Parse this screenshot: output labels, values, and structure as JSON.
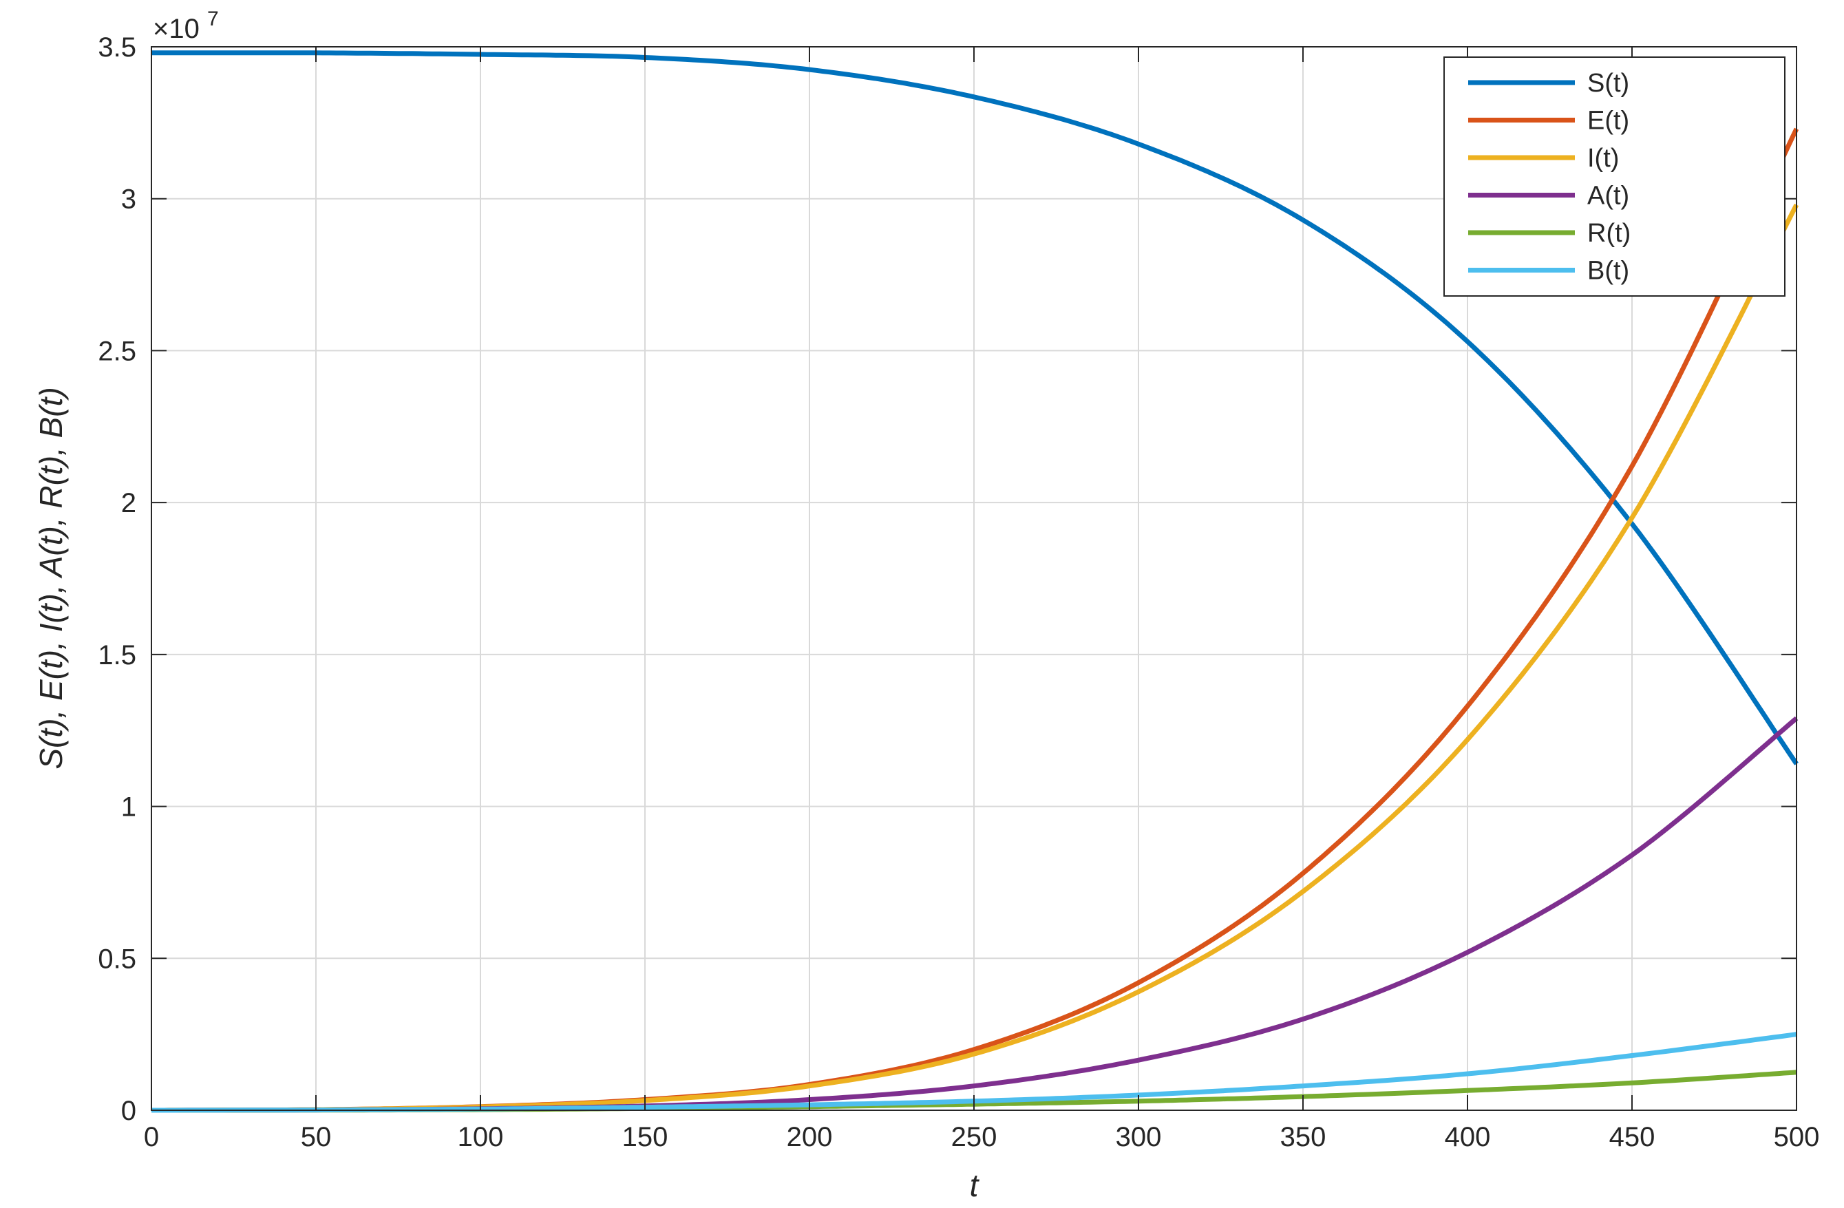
{
  "chart_data": {
    "type": "line",
    "xlabel": "t",
    "ylabel": "S(t), E(t), I(t), A(t), R(t), B(t)",
    "y_multiplier_base": "×10",
    "y_multiplier_exponent": "7",
    "xlim": [
      0,
      500
    ],
    "ylim": [
      0,
      3.5
    ],
    "x_ticks": [
      0,
      50,
      100,
      150,
      200,
      250,
      300,
      350,
      400,
      450,
      500
    ],
    "x_tick_labels": [
      "0",
      "50",
      "100",
      "150",
      "200",
      "250",
      "300",
      "350",
      "400",
      "450",
      "500"
    ],
    "y_ticks": [
      0,
      0.5,
      1,
      1.5,
      2,
      2.5,
      3,
      3.5
    ],
    "y_tick_labels": [
      "0",
      "0.5",
      "1",
      "1.5",
      "2",
      "2.5",
      "3",
      "3.5"
    ],
    "grid": true,
    "legend_position": "top-right",
    "x": [
      0,
      50,
      100,
      150,
      200,
      250,
      300,
      350,
      400,
      450,
      500
    ],
    "series": [
      {
        "name": "S(t)",
        "color": "#0072BD",
        "values": [
          3.48,
          3.48,
          3.475,
          3.465,
          3.425,
          3.335,
          3.18,
          2.93,
          2.53,
          1.93,
          1.14
        ]
      },
      {
        "name": "E(t)",
        "color": "#D95319",
        "values": [
          0,
          0.002,
          0.012,
          0.035,
          0.085,
          0.2,
          0.42,
          0.78,
          1.33,
          2.12,
          3.23
        ]
      },
      {
        "name": "I(t)",
        "color": "#EDB120",
        "values": [
          0,
          0.002,
          0.011,
          0.032,
          0.08,
          0.185,
          0.39,
          0.72,
          1.22,
          1.95,
          2.98
        ]
      },
      {
        "name": "A(t)",
        "color": "#7E2F8E",
        "values": [
          0,
          0.001,
          0.005,
          0.014,
          0.035,
          0.08,
          0.165,
          0.3,
          0.52,
          0.84,
          1.29
        ]
      },
      {
        "name": "R(t)",
        "color": "#77AC30",
        "values": [
          0,
          0.0005,
          0.002,
          0.006,
          0.012,
          0.02,
          0.03,
          0.045,
          0.065,
          0.09,
          0.125
        ]
      },
      {
        "name": "B(t)",
        "color": "#4DBEEE",
        "values": [
          0,
          0.001,
          0.004,
          0.01,
          0.018,
          0.03,
          0.05,
          0.08,
          0.12,
          0.18,
          0.25
        ]
      }
    ]
  }
}
